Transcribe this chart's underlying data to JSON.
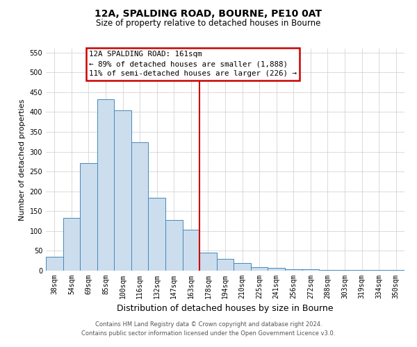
{
  "title": "12A, SPALDING ROAD, BOURNE, PE10 0AT",
  "subtitle": "Size of property relative to detached houses in Bourne",
  "xlabel": "Distribution of detached houses by size in Bourne",
  "ylabel": "Number of detached properties",
  "bar_labels": [
    "38sqm",
    "54sqm",
    "69sqm",
    "85sqm",
    "100sqm",
    "116sqm",
    "132sqm",
    "147sqm",
    "163sqm",
    "178sqm",
    "194sqm",
    "210sqm",
    "225sqm",
    "241sqm",
    "256sqm",
    "272sqm",
    "288sqm",
    "303sqm",
    "319sqm",
    "334sqm",
    "350sqm"
  ],
  "bar_values": [
    35,
    133,
    272,
    432,
    405,
    323,
    184,
    128,
    103,
    46,
    30,
    20,
    8,
    7,
    3,
    4,
    2,
    1,
    1,
    1,
    2
  ],
  "bar_color": "#ccdded",
  "bar_edge_color": "#4488bb",
  "vline_color": "#cc0000",
  "annotation_line1": "12A SPALDING ROAD: 161sqm",
  "annotation_line2": "← 89% of detached houses are smaller (1,888)",
  "annotation_line3": "11% of semi-detached houses are larger (226) →",
  "annotation_box_color": "#cc0000",
  "ylim": [
    0,
    560
  ],
  "yticks": [
    0,
    50,
    100,
    150,
    200,
    250,
    300,
    350,
    400,
    450,
    500,
    550
  ],
  "footer_line1": "Contains HM Land Registry data © Crown copyright and database right 2024.",
  "footer_line2": "Contains public sector information licensed under the Open Government Licence v3.0.",
  "bg_color": "#ffffff",
  "grid_color": "#cccccc"
}
